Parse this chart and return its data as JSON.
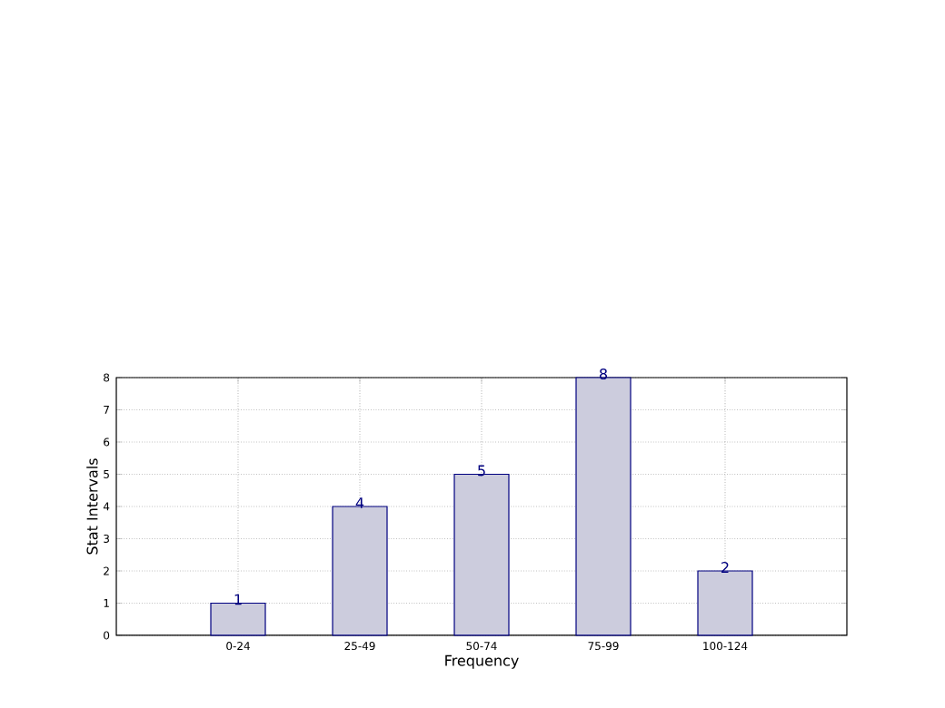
{
  "chart_data": {
    "type": "bar",
    "xlabel": "Frequency",
    "ylabel": "Stat Intervals",
    "categories": [
      "0-24",
      "25-49",
      "50-74",
      "75-99",
      "100-124"
    ],
    "values": [
      1,
      4,
      5,
      8,
      2
    ],
    "color": "#ccccdd",
    "ylim": [
      0,
      8
    ],
    "yticks": [
      0,
      1,
      2,
      3,
      4,
      5,
      6,
      7,
      8
    ],
    "grid": true,
    "data_labels": true
  }
}
